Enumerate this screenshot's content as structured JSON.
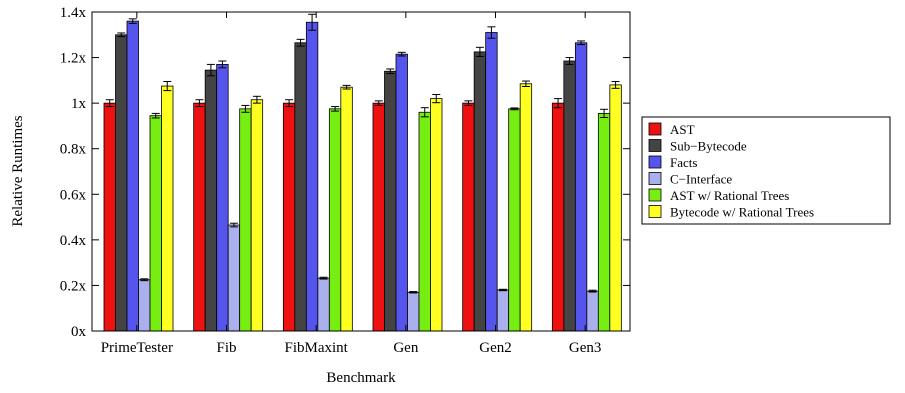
{
  "chart_data": {
    "type": "bar",
    "xlabel": "Benchmark",
    "ylabel": "Relative Runtimes",
    "ylim": [
      0,
      1.4
    ],
    "yticks": [
      {
        "value": 0,
        "label": "0x"
      },
      {
        "value": 0.2,
        "label": "0.2x"
      },
      {
        "value": 0.4,
        "label": "0.4x"
      },
      {
        "value": 0.6,
        "label": "0.6x"
      },
      {
        "value": 0.8,
        "label": "0.8x"
      },
      {
        "value": 1.0,
        "label": "1x"
      },
      {
        "value": 1.2,
        "label": "1.2x"
      },
      {
        "value": 1.4,
        "label": "1.4x"
      }
    ],
    "categories": [
      "PrimeTester",
      "Fib",
      "FibMaxint",
      "Gen",
      "Gen2",
      "Gen3"
    ],
    "legend_position": "right",
    "grid": false,
    "error_bars": true,
    "series": [
      {
        "name": "AST",
        "color": "#ee1111",
        "values": [
          1.0,
          1.0,
          1.0,
          1.0,
          1.0,
          1.0
        ],
        "errors": [
          0.015,
          0.015,
          0.015,
          0.01,
          0.01,
          0.02
        ]
      },
      {
        "name": "Sub−Bytecode",
        "color": "#444444",
        "values": [
          1.3,
          1.145,
          1.265,
          1.14,
          1.225,
          1.185
        ],
        "errors": [
          0.008,
          0.025,
          0.015,
          0.01,
          0.02,
          0.015
        ]
      },
      {
        "name": "Facts",
        "color": "#5555ee",
        "values": [
          1.36,
          1.17,
          1.355,
          1.215,
          1.31,
          1.265
        ],
        "errors": [
          0.01,
          0.015,
          0.035,
          0.008,
          0.025,
          0.008
        ]
      },
      {
        "name": "C−Interface",
        "color": "#aab0ee",
        "values": [
          0.225,
          0.465,
          0.232,
          0.17,
          0.18,
          0.175
        ],
        "errors": [
          0.004,
          0.008,
          0.004,
          0.003,
          0.003,
          0.004
        ]
      },
      {
        "name": "AST w/ Rational Trees",
        "color": "#77ee11",
        "values": [
          0.945,
          0.975,
          0.975,
          0.96,
          0.975,
          0.955
        ],
        "errors": [
          0.01,
          0.015,
          0.01,
          0.02,
          0.004,
          0.018
        ]
      },
      {
        "name": "Bytecode w/ Rational Trees",
        "color": "#ffff22",
        "values": [
          1.075,
          1.015,
          1.07,
          1.02,
          1.085,
          1.08
        ],
        "errors": [
          0.02,
          0.015,
          0.008,
          0.018,
          0.012,
          0.015
        ]
      }
    ]
  }
}
